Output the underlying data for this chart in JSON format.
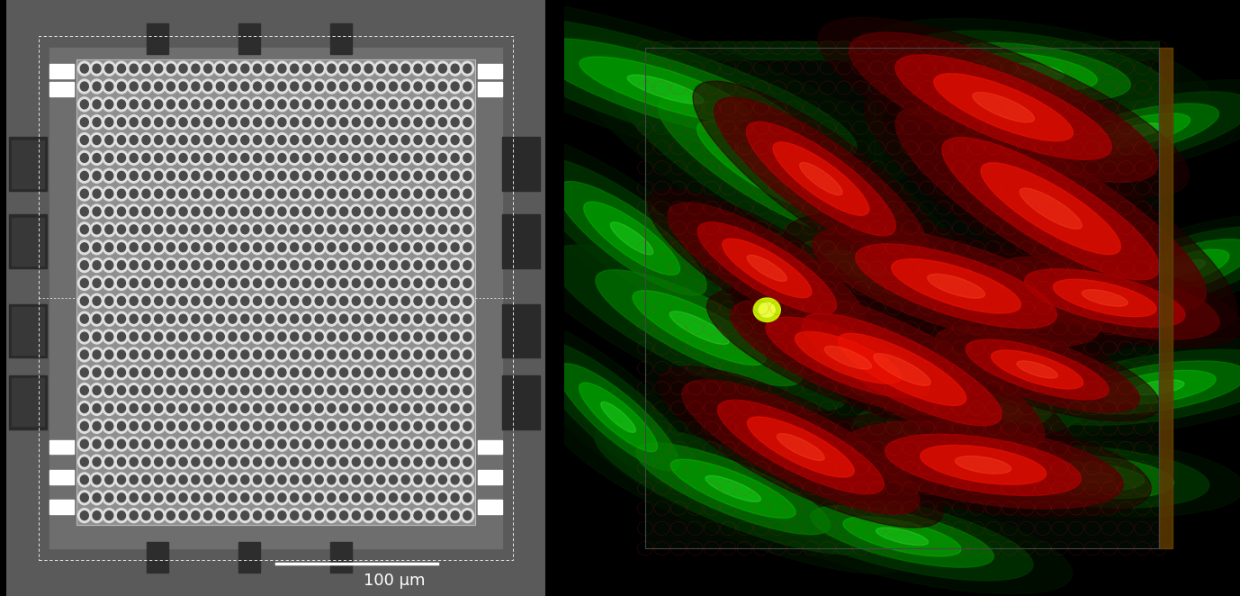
{
  "scale_bar_text": "100 μm",
  "background_color": "#000000",
  "figure_width": 13.78,
  "figure_height": 6.62,
  "dpi": 100,
  "left_outer_bg": "#5a5a5a",
  "left_chip_bg": "#888888",
  "left_electrode_bg": "#909090",
  "left_pad_white": "#ffffff",
  "left_pad_dark": "#333333",
  "electrode_ring_color": "#e0e0e0",
  "electrode_inner_color": "#555555",
  "n_cols": 32,
  "n_rows": 26,
  "green_cells": [
    [
      15,
      85,
      60,
      14,
      -20
    ],
    [
      30,
      72,
      55,
      16,
      -35
    ],
    [
      10,
      60,
      40,
      12,
      -40
    ],
    [
      20,
      45,
      50,
      14,
      -30
    ],
    [
      8,
      30,
      35,
      10,
      -45
    ],
    [
      25,
      18,
      45,
      12,
      -25
    ],
    [
      70,
      88,
      40,
      12,
      -10
    ],
    [
      85,
      78,
      35,
      10,
      15
    ],
    [
      92,
      55,
      30,
      10,
      20
    ],
    [
      88,
      35,
      38,
      11,
      10
    ],
    [
      78,
      20,
      35,
      10,
      -5
    ],
    [
      50,
      10,
      40,
      11,
      -15
    ],
    [
      60,
      30,
      35,
      10,
      5
    ],
    [
      45,
      55,
      30,
      9,
      -20
    ]
  ],
  "red_cells": [
    [
      65,
      82,
      50,
      15,
      -25
    ],
    [
      72,
      65,
      55,
      16,
      -35
    ],
    [
      58,
      52,
      45,
      14,
      -20
    ],
    [
      50,
      38,
      48,
      14,
      -30
    ],
    [
      62,
      22,
      42,
      13,
      -10
    ],
    [
      38,
      70,
      40,
      12,
      -40
    ],
    [
      30,
      55,
      35,
      11,
      -35
    ],
    [
      42,
      40,
      38,
      12,
      -25
    ],
    [
      35,
      25,
      40,
      12,
      -30
    ],
    [
      80,
      50,
      35,
      11,
      -15
    ],
    [
      70,
      38,
      32,
      10,
      -20
    ]
  ],
  "yellow_spot": [
    30,
    48,
    4,
    4,
    0
  ],
  "right_panel_edge": "#222222",
  "electrode_overlay_color": "#cc2222",
  "electrode_overlay_alpha": 0.3
}
